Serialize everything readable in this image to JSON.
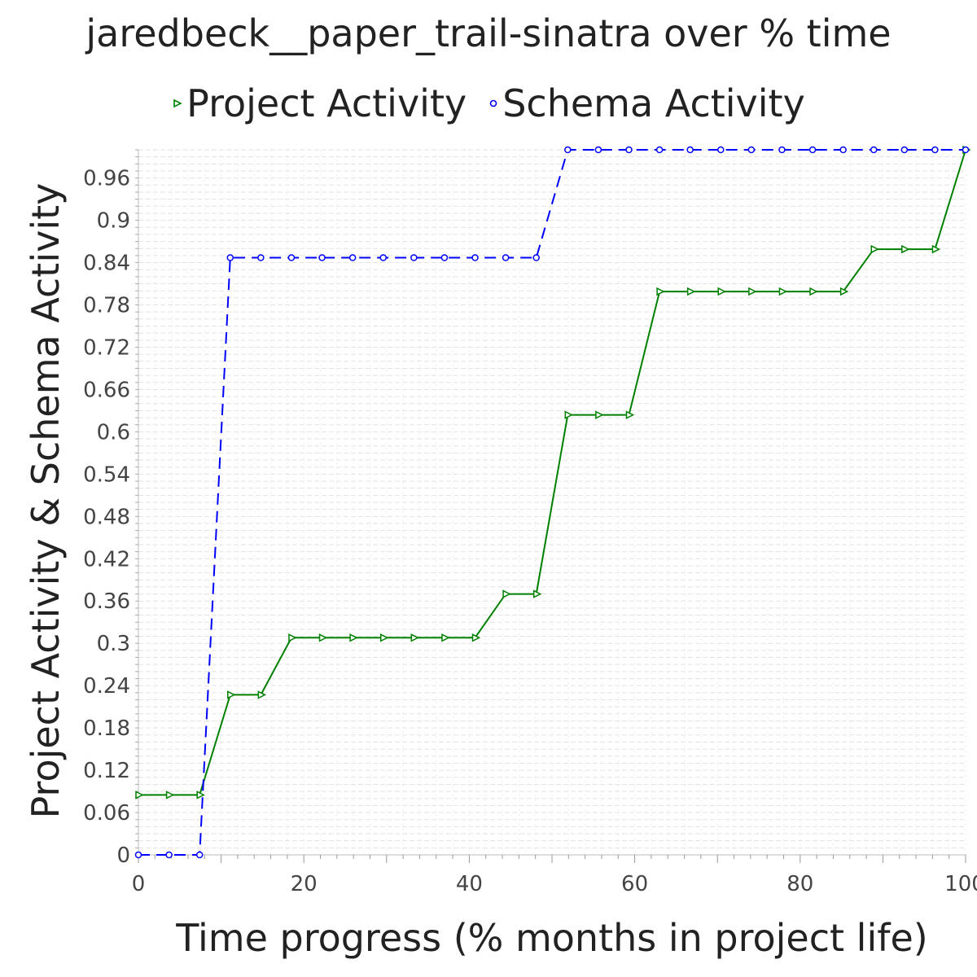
{
  "chart_data": {
    "type": "line",
    "title": "jaredbeck__paper_trail-sinatra over % time",
    "xlabel": "Time progress (% months in project life)",
    "ylabel": "Project Activity & Schema Activity",
    "xlim": [
      0,
      100
    ],
    "ylim": [
      0,
      1
    ],
    "x_ticks": [
      0,
      20,
      40,
      60,
      80,
      100
    ],
    "y_ticks": [
      0,
      0.06,
      0.12,
      0.18,
      0.24,
      0.3,
      0.36,
      0.42,
      0.48,
      0.54,
      0.6,
      0.66,
      0.72,
      0.78,
      0.84,
      0.9,
      0.96
    ],
    "grid": true,
    "legend_position": "top",
    "series": [
      {
        "name": "Project Activity",
        "color": "#008000",
        "line_style": "solid",
        "marker": "triangle-right",
        "x": [
          0,
          3.7,
          7.4,
          11.1,
          14.8,
          18.5,
          22.2,
          25.9,
          29.6,
          33.3,
          37.0,
          40.7,
          44.4,
          48.1,
          51.9,
          55.6,
          59.3,
          63.0,
          66.7,
          70.4,
          74.1,
          77.8,
          81.5,
          85.2,
          88.9,
          92.6,
          96.3,
          100
        ],
        "values": [
          0.085,
          0.085,
          0.085,
          0.227,
          0.227,
          0.308,
          0.308,
          0.308,
          0.308,
          0.308,
          0.308,
          0.308,
          0.37,
          0.37,
          0.624,
          0.624,
          0.624,
          0.799,
          0.799,
          0.799,
          0.799,
          0.799,
          0.799,
          0.799,
          0.859,
          0.859,
          0.859,
          1.0
        ]
      },
      {
        "name": "Schema Activity",
        "color": "#0000ff",
        "line_style": "dashed",
        "marker": "circle",
        "x": [
          0,
          3.7,
          7.4,
          11.1,
          14.8,
          18.5,
          22.2,
          25.9,
          29.6,
          33.3,
          37.0,
          40.7,
          44.4,
          48.1,
          51.9,
          55.6,
          59.3,
          63.0,
          66.7,
          70.4,
          74.1,
          77.8,
          81.5,
          85.2,
          88.9,
          92.6,
          96.3,
          100
        ],
        "values": [
          0,
          0,
          0,
          0.847,
          0.847,
          0.847,
          0.847,
          0.847,
          0.847,
          0.847,
          0.847,
          0.847,
          0.847,
          0.847,
          1.0,
          1.0,
          1.0,
          1.0,
          1.0,
          1.0,
          1.0,
          1.0,
          1.0,
          1.0,
          1.0,
          1.0,
          1.0,
          1.0
        ]
      }
    ]
  }
}
